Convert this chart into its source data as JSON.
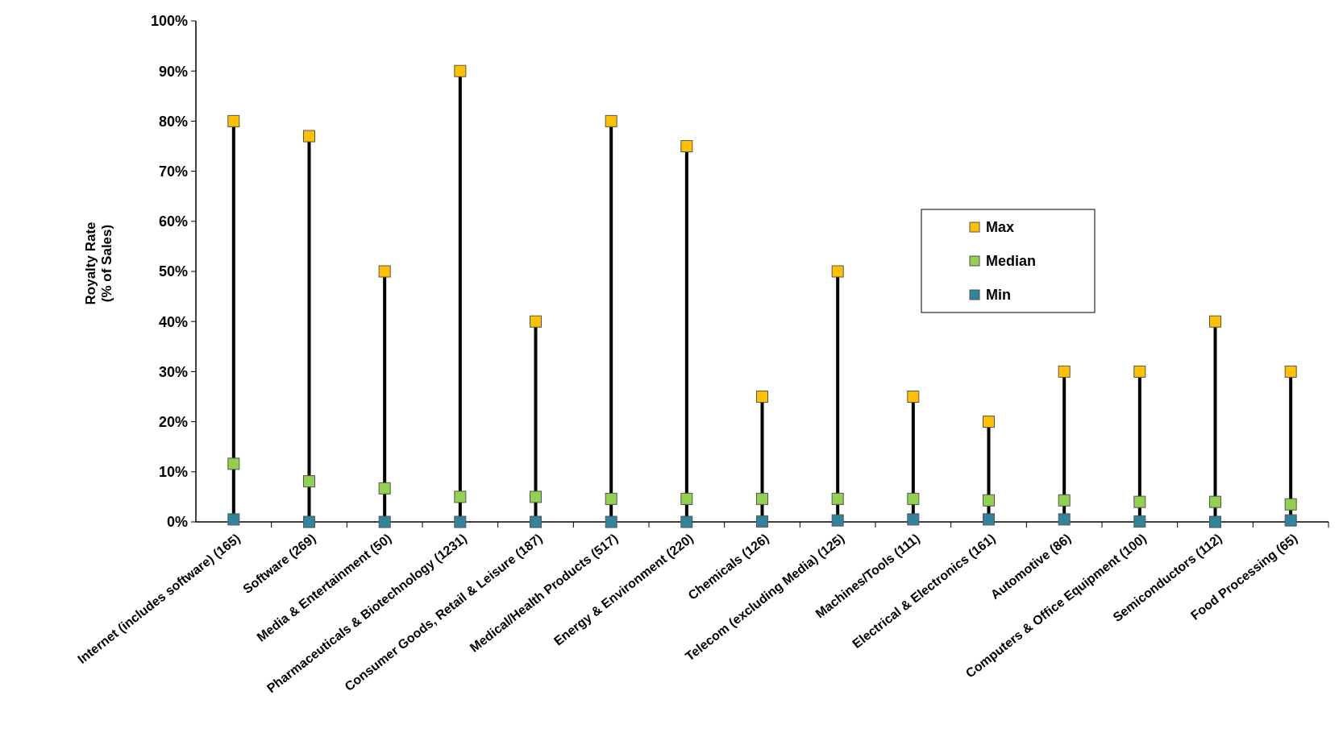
{
  "chart_data": {
    "type": "scatter",
    "ylabel": "Royalty Rate\n(% of Sales)",
    "categories": [
      "Internet (includes software) (165)",
      "Software (269)",
      "Media & Entertainment (50)",
      "Pharmaceuticals & Biotechnology (1231)",
      "Consumer Goods, Retail & Leisure (187)",
      "Medical/Health Products (517)",
      "Energy & Environment (220)",
      "Chemicals (126)",
      "Telecom (excluding Media) (125)",
      "Machines/Tools (111)",
      "Electrical & Electronics (161)",
      "Automotive (86)",
      "Computers & Office Equipment (100)",
      "Semiconductors (112)",
      "Food Processing (65)"
    ],
    "series": [
      {
        "name": "Max",
        "color": "#ffc000",
        "values": [
          80,
          77,
          50,
          90,
          40,
          80,
          75,
          25,
          50,
          25,
          20,
          30,
          30,
          40,
          30
        ]
      },
      {
        "name": "Median",
        "color": "#92d050",
        "values": [
          11.6,
          8.1,
          6.7,
          5,
          5,
          4.6,
          4.6,
          4.6,
          4.6,
          4.6,
          4.3,
          4.3,
          4,
          4,
          3.5
        ]
      },
      {
        "name": "Min",
        "color": "#31849b",
        "values": [
          0.5,
          0,
          0,
          0,
          0,
          0,
          0,
          0.1,
          0.3,
          0.5,
          0.5,
          0.5,
          0.1,
          0,
          0.3
        ]
      }
    ],
    "ylim": [
      0,
      100
    ],
    "yticks": [
      {
        "value": 0,
        "label": "0%"
      },
      {
        "value": 10,
        "label": "10%"
      },
      {
        "value": 20,
        "label": "20%"
      },
      {
        "value": 30,
        "label": "30%"
      },
      {
        "value": 40,
        "label": "40%"
      },
      {
        "value": 50,
        "label": "50%"
      },
      {
        "value": 60,
        "label": "60%"
      },
      {
        "value": 70,
        "label": "70%"
      },
      {
        "value": 80,
        "label": "80%"
      },
      {
        "value": 90,
        "label": "90%"
      },
      {
        "value": 100,
        "label": "100%"
      }
    ],
    "marker": "square",
    "legend": "right",
    "grid": false
  }
}
